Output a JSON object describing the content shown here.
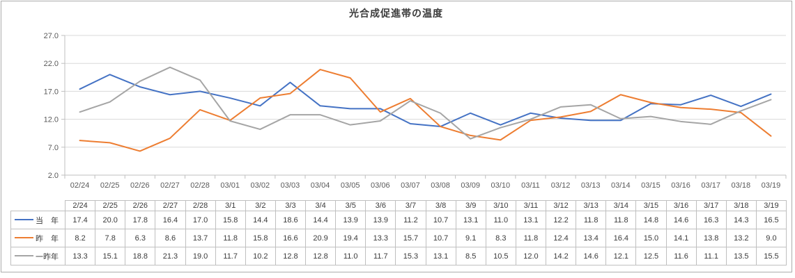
{
  "window": {
    "frame_border_color": "#ABABAB"
  },
  "chart_data": {
    "type": "line",
    "title": "光合成促進帯の温度",
    "xlabel": "",
    "ylabel": "",
    "ylim": [
      2,
      27
    ],
    "y_ticks": [
      27,
      22,
      17,
      12,
      7,
      2
    ],
    "grid": true,
    "legend_position": "data-table-left",
    "x_axis_labels": [
      "02/24",
      "02/25",
      "02/26",
      "02/27",
      "02/28",
      "03/01",
      "03/02",
      "03/03",
      "03/04",
      "03/05",
      "03/06",
      "03/07",
      "03/08",
      "03/09",
      "03/10",
      "03/11",
      "03/12",
      "03/13",
      "03/14",
      "03/15",
      "03/16",
      "03/17",
      "03/18",
      "03/19"
    ],
    "table_headers": [
      "2/24",
      "2/25",
      "2/26",
      "2/27",
      "2/28",
      "3/1",
      "3/2",
      "3/3",
      "3/4",
      "3/5",
      "3/6",
      "3/7",
      "3/8",
      "3/9",
      "3/10",
      "3/11",
      "3/12",
      "3/13",
      "3/14",
      "3/15",
      "3/16",
      "3/17",
      "3/18",
      "3/19"
    ],
    "series": [
      {
        "name": "当　年",
        "color": "#4472C4",
        "values": [
          17.4,
          20.0,
          17.8,
          16.4,
          17.0,
          15.8,
          14.4,
          18.6,
          14.4,
          13.9,
          13.9,
          11.2,
          10.7,
          13.1,
          11.0,
          13.1,
          12.2,
          11.8,
          11.8,
          14.8,
          14.6,
          16.3,
          14.3,
          16.5
        ]
      },
      {
        "name": "昨　年",
        "color": "#ED7D31",
        "values": [
          8.2,
          7.8,
          6.3,
          8.6,
          13.7,
          11.8,
          15.8,
          16.6,
          20.9,
          19.4,
          13.3,
          15.7,
          10.7,
          9.1,
          8.3,
          11.8,
          12.4,
          13.4,
          16.4,
          15.0,
          14.1,
          13.8,
          13.2,
          9.0
        ]
      },
      {
        "name": "一昨年",
        "color": "#A5A5A5",
        "values": [
          13.3,
          15.1,
          18.8,
          21.3,
          19.0,
          11.7,
          10.2,
          12.8,
          12.8,
          11.0,
          11.7,
          15.3,
          13.1,
          8.5,
          10.5,
          12.0,
          14.2,
          14.6,
          12.1,
          12.5,
          11.6,
          11.1,
          13.5,
          15.5
        ]
      }
    ],
    "style": {
      "gridline_color": "#D9D9D9",
      "axis_color": "#BFBFBF",
      "axis_label_color": "#595959",
      "line_width": 2
    }
  }
}
